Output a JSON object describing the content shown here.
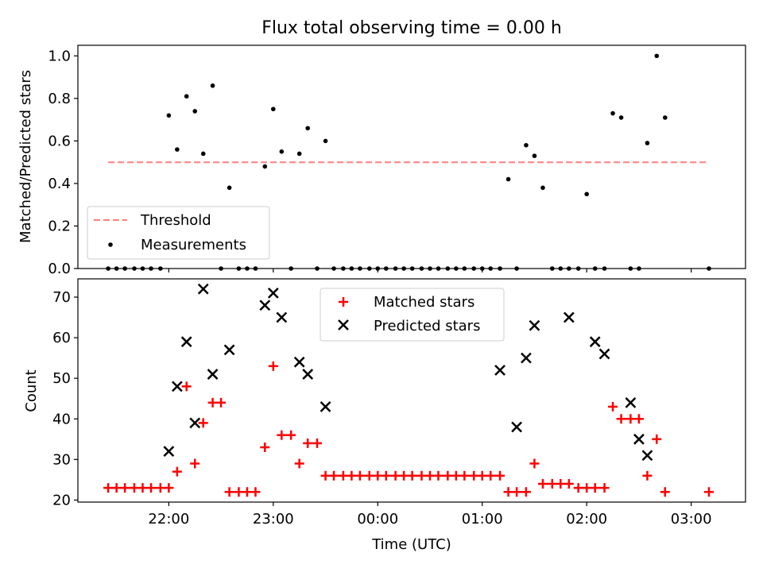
{
  "chart_data": [
    {
      "type": "scatter",
      "title": "Flux total observing time = 0.00 h",
      "xlabel": "",
      "ylabel": "Matched/Predicted stars",
      "xlim": [
        -2.87,
        3.52
      ],
      "ylim": [
        0,
        1.05
      ],
      "yticks": [
        "0.0",
        "0.2",
        "0.4",
        "0.6",
        "0.8",
        "1.0"
      ],
      "legend": {
        "placement": "lower-left",
        "entries": [
          "Threshold",
          "Measurements"
        ]
      },
      "threshold": {
        "name": "Threshold",
        "value": 0.5,
        "x_range": [
          -2.58,
          3.17
        ],
        "color": "#ff7f7f"
      },
      "series": [
        {
          "name": "Measurements",
          "color": "#000000",
          "points": [
            [
              -2.58,
              0
            ],
            [
              -2.5,
              0
            ],
            [
              -2.42,
              0
            ],
            [
              -2.33,
              0
            ],
            [
              -2.25,
              0
            ],
            [
              -2.17,
              0
            ],
            [
              -2.08,
              0
            ],
            [
              -2.0,
              0.72
            ],
            [
              -1.92,
              0.56
            ],
            [
              -1.83,
              0.81
            ],
            [
              -1.75,
              0.74
            ],
            [
              -1.67,
              0.54
            ],
            [
              -1.58,
              0.86
            ],
            [
              -1.5,
              0
            ],
            [
              -1.42,
              0.38
            ],
            [
              -1.33,
              0
            ],
            [
              -1.25,
              0
            ],
            [
              -1.17,
              0
            ],
            [
              -1.08,
              0.48
            ],
            [
              -1.0,
              0.75
            ],
            [
              -0.92,
              0.55
            ],
            [
              -0.83,
              0
            ],
            [
              -0.75,
              0.54
            ],
            [
              -0.67,
              0.66
            ],
            [
              -0.58,
              0
            ],
            [
              -0.5,
              0.6
            ],
            [
              -0.42,
              0
            ],
            [
              -0.33,
              0
            ],
            [
              -0.25,
              0
            ],
            [
              -0.17,
              0
            ],
            [
              -0.08,
              0
            ],
            [
              0.0,
              0
            ],
            [
              0.08,
              0
            ],
            [
              0.17,
              0
            ],
            [
              0.25,
              0
            ],
            [
              0.33,
              0
            ],
            [
              0.42,
              0
            ],
            [
              0.5,
              0
            ],
            [
              0.58,
              0
            ],
            [
              0.67,
              0
            ],
            [
              0.75,
              0
            ],
            [
              0.83,
              0
            ],
            [
              0.92,
              0
            ],
            [
              1.0,
              0
            ],
            [
              1.08,
              0
            ],
            [
              1.17,
              0
            ],
            [
              1.25,
              0.42
            ],
            [
              1.33,
              0
            ],
            [
              1.42,
              0.58
            ],
            [
              1.5,
              0.53
            ],
            [
              1.58,
              0.38
            ],
            [
              1.67,
              0
            ],
            [
              1.75,
              0
            ],
            [
              1.83,
              0
            ],
            [
              1.92,
              0
            ],
            [
              2.0,
              0.35
            ],
            [
              2.08,
              0
            ],
            [
              2.17,
              0
            ],
            [
              2.25,
              0.73
            ],
            [
              2.33,
              0.71
            ],
            [
              2.42,
              0
            ],
            [
              2.5,
              0
            ],
            [
              2.58,
              0.59
            ],
            [
              2.67,
              1.0
            ],
            [
              2.75,
              0.71
            ],
            [
              3.17,
              0
            ]
          ]
        }
      ]
    },
    {
      "type": "scatter",
      "title": "",
      "xlabel": "Time (UTC)",
      "ylabel": "Count",
      "xlim": [
        -2.87,
        3.52
      ],
      "ylim": [
        19.5,
        74.5
      ],
      "yticks": [
        "20",
        "30",
        "40",
        "50",
        "60",
        "70"
      ],
      "xticks": [
        {
          "value": -2,
          "label": "22:00"
        },
        {
          "value": -1,
          "label": "23:00"
        },
        {
          "value": 0,
          "label": "00:00"
        },
        {
          "value": 1,
          "label": "01:00"
        },
        {
          "value": 2,
          "label": "02:00"
        },
        {
          "value": 3,
          "label": "03:00"
        }
      ],
      "legend": {
        "placement": "upper-center",
        "entries": [
          "Matched stars",
          "Predicted stars"
        ]
      },
      "series": [
        {
          "name": "Matched stars",
          "marker": "plus",
          "color": "#ff0000",
          "points": [
            [
              -2.58,
              23
            ],
            [
              -2.5,
              23
            ],
            [
              -2.42,
              23
            ],
            [
              -2.33,
              23
            ],
            [
              -2.25,
              23
            ],
            [
              -2.17,
              23
            ],
            [
              -2.08,
              23
            ],
            [
              -2.0,
              23
            ],
            [
              -1.92,
              27
            ],
            [
              -1.83,
              48
            ],
            [
              -1.75,
              29
            ],
            [
              -1.67,
              39
            ],
            [
              -1.58,
              44
            ],
            [
              -1.5,
              44
            ],
            [
              -1.42,
              22
            ],
            [
              -1.33,
              22
            ],
            [
              -1.25,
              22
            ],
            [
              -1.17,
              22
            ],
            [
              -1.08,
              33
            ],
            [
              -1.0,
              53
            ],
            [
              -0.92,
              36
            ],
            [
              -0.83,
              36
            ],
            [
              -0.75,
              29
            ],
            [
              -0.67,
              34
            ],
            [
              -0.58,
              34
            ],
            [
              -0.5,
              26
            ],
            [
              -0.42,
              26
            ],
            [
              -0.33,
              26
            ],
            [
              -0.25,
              26
            ],
            [
              -0.17,
              26
            ],
            [
              -0.08,
              26
            ],
            [
              0.0,
              26
            ],
            [
              0.08,
              26
            ],
            [
              0.17,
              26
            ],
            [
              0.25,
              26
            ],
            [
              0.33,
              26
            ],
            [
              0.42,
              26
            ],
            [
              0.5,
              26
            ],
            [
              0.58,
              26
            ],
            [
              0.67,
              26
            ],
            [
              0.75,
              26
            ],
            [
              0.83,
              26
            ],
            [
              0.92,
              26
            ],
            [
              1.0,
              26
            ],
            [
              1.08,
              26
            ],
            [
              1.17,
              26
            ],
            [
              1.25,
              22
            ],
            [
              1.33,
              22
            ],
            [
              1.42,
              22
            ],
            [
              1.5,
              29
            ],
            [
              1.58,
              24
            ],
            [
              1.67,
              24
            ],
            [
              1.75,
              24
            ],
            [
              1.83,
              24
            ],
            [
              1.92,
              23
            ],
            [
              2.0,
              23
            ],
            [
              2.08,
              23
            ],
            [
              2.17,
              23
            ],
            [
              2.25,
              43
            ],
            [
              2.33,
              40
            ],
            [
              2.42,
              40
            ],
            [
              2.5,
              40
            ],
            [
              2.58,
              26
            ],
            [
              2.67,
              35
            ],
            [
              2.75,
              22
            ],
            [
              3.17,
              22
            ]
          ]
        },
        {
          "name": "Predicted stars",
          "marker": "x",
          "color": "#000000",
          "points": [
            [
              -2.0,
              32
            ],
            [
              -1.92,
              48
            ],
            [
              -1.83,
              59
            ],
            [
              -1.75,
              39
            ],
            [
              -1.67,
              72
            ],
            [
              -1.58,
              51
            ],
            [
              -1.42,
              57
            ],
            [
              -1.08,
              68
            ],
            [
              -1.0,
              71
            ],
            [
              -0.92,
              65
            ],
            [
              -0.75,
              54
            ],
            [
              -0.67,
              51
            ],
            [
              -0.5,
              43
            ],
            [
              1.17,
              52
            ],
            [
              1.33,
              38
            ],
            [
              1.42,
              55
            ],
            [
              1.5,
              63
            ],
            [
              1.83,
              65
            ],
            [
              2.08,
              59
            ],
            [
              2.17,
              56
            ],
            [
              2.42,
              44
            ],
            [
              2.5,
              35
            ],
            [
              2.58,
              31
            ]
          ]
        }
      ]
    }
  ]
}
